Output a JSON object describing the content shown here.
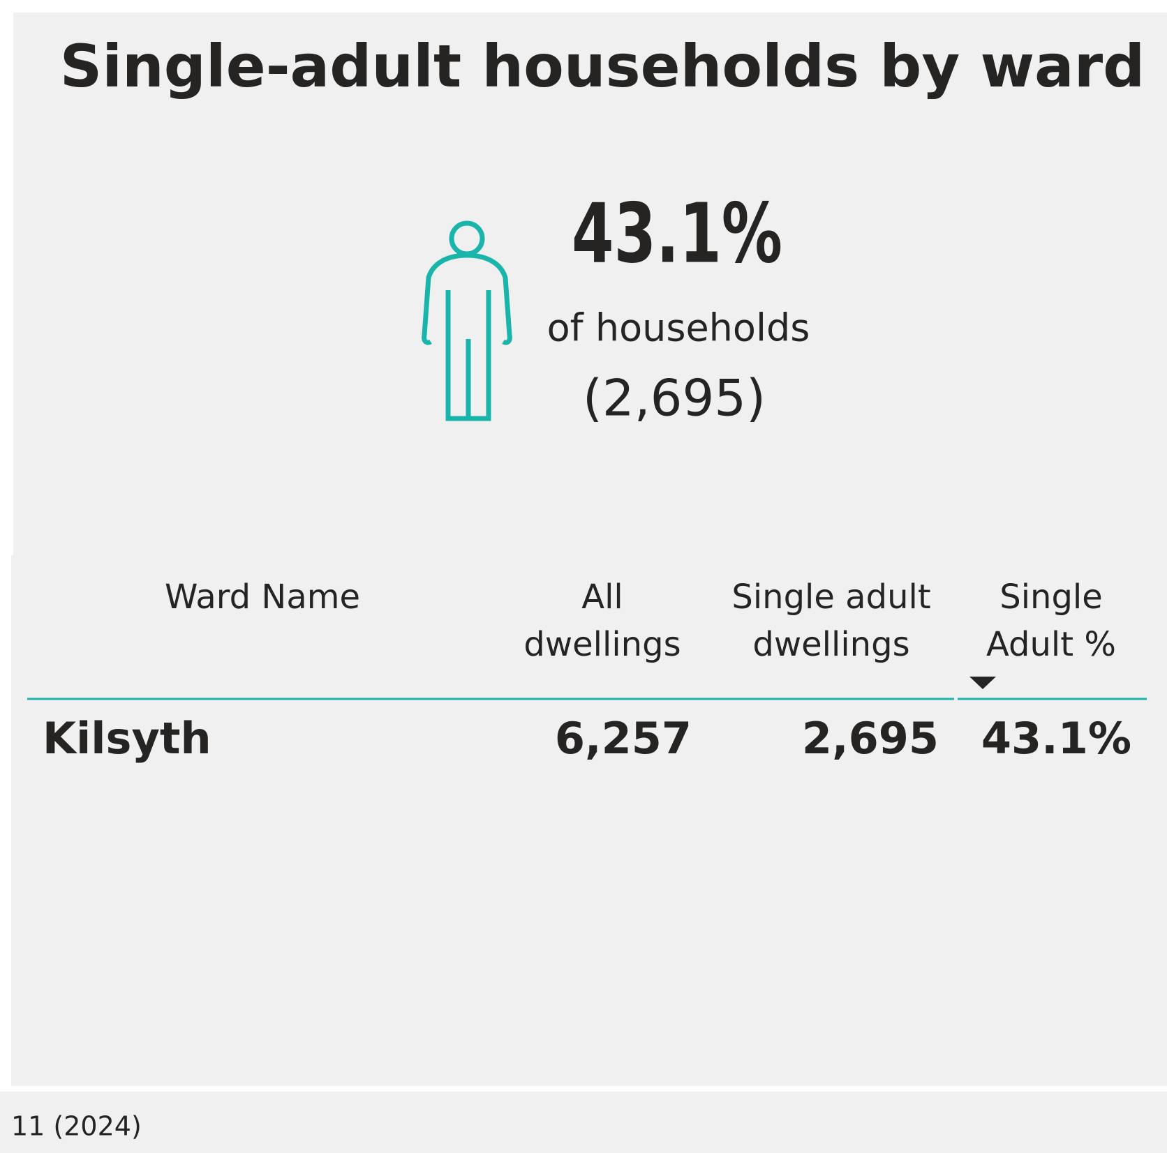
{
  "title": "Single-adult households by ward",
  "kpi": {
    "value": "43.1%",
    "label": "of households",
    "count": "(2,695)"
  },
  "table": {
    "headers": [
      [
        "Ward Name"
      ],
      [
        "All",
        "dwellings"
      ],
      [
        "Single adult",
        "dwellings"
      ],
      [
        "Single",
        "Adult %"
      ]
    ],
    "rows": [
      [
        "Kilsyth",
        "6,257",
        "2,695",
        "43.1%"
      ]
    ]
  },
  "footer": "11 (2024)"
}
